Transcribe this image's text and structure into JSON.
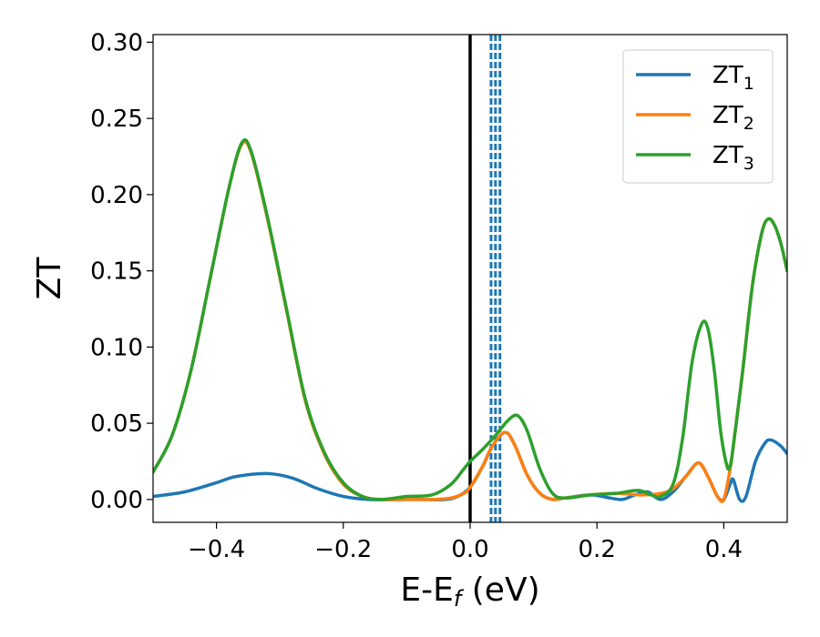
{
  "chart_data": {
    "type": "line",
    "xlabel": "E-E",
    "xlabel_sub": "f",
    "xlabel_unit": " (eV)",
    "ylabel": "ZT",
    "xlim": [
      -0.5,
      0.5
    ],
    "ylim": [
      -0.015,
      0.305
    ],
    "x_ticks": [
      -0.4,
      -0.2,
      0.0,
      0.2,
      0.4
    ],
    "x_tick_labels": [
      "−0.4",
      "−0.2",
      "0.0",
      "0.2",
      "0.4"
    ],
    "y_ticks": [
      0.0,
      0.05,
      0.1,
      0.15,
      0.2,
      0.25,
      0.3
    ],
    "y_tick_labels": [
      "0.00",
      "0.05",
      "0.10",
      "0.15",
      "0.20",
      "0.25",
      "0.30"
    ],
    "grid": false,
    "legend_position": "top-right",
    "vertical_lines": [
      {
        "x": 0.0,
        "style": "solid",
        "color": "#000000"
      },
      {
        "x": 0.033,
        "style": "dashed",
        "color": "#1f77b4"
      },
      {
        "x": 0.04,
        "style": "dashed",
        "color": "#1f77b4"
      },
      {
        "x": 0.047,
        "style": "dashed",
        "color": "#1f77b4"
      }
    ],
    "series": [
      {
        "name": "ZT",
        "sub": "1",
        "color": "#1f77b4",
        "points": [
          [
            -0.5,
            0.002
          ],
          [
            -0.45,
            0.005
          ],
          [
            -0.4,
            0.011
          ],
          [
            -0.37,
            0.015
          ],
          [
            -0.32,
            0.017
          ],
          [
            -0.28,
            0.014
          ],
          [
            -0.24,
            0.007
          ],
          [
            -0.2,
            0.002
          ],
          [
            -0.16,
            0.0
          ],
          [
            -0.12,
            0.0
          ],
          [
            -0.08,
            0.0
          ],
          [
            -0.04,
            0.0
          ],
          [
            -0.02,
            0.002
          ],
          [
            0.0,
            0.008
          ],
          [
            0.02,
            0.022
          ],
          [
            0.035,
            0.035
          ],
          [
            0.055,
            0.044
          ],
          [
            0.07,
            0.036
          ],
          [
            0.09,
            0.016
          ],
          [
            0.11,
            0.004
          ],
          [
            0.13,
            0.0
          ],
          [
            0.15,
            0.001
          ],
          [
            0.19,
            0.003
          ],
          [
            0.22,
            0.001
          ],
          [
            0.24,
            0.0
          ],
          [
            0.26,
            0.003
          ],
          [
            0.28,
            0.005
          ],
          [
            0.3,
            0.0
          ],
          [
            0.32,
            0.005
          ],
          [
            0.34,
            0.015
          ],
          [
            0.36,
            0.024
          ],
          [
            0.375,
            0.015
          ],
          [
            0.39,
            0.002
          ],
          [
            0.4,
            0.0
          ],
          [
            0.41,
            0.01
          ],
          [
            0.415,
            0.013
          ],
          [
            0.425,
            0.0
          ],
          [
            0.435,
            0.002
          ],
          [
            0.45,
            0.025
          ],
          [
            0.465,
            0.037
          ],
          [
            0.475,
            0.039
          ],
          [
            0.49,
            0.035
          ],
          [
            0.5,
            0.03
          ]
        ]
      },
      {
        "name": "ZT",
        "sub": "2",
        "color": "#ff7f0e",
        "points": [
          [
            -0.5,
            0.018
          ],
          [
            -0.47,
            0.042
          ],
          [
            -0.44,
            0.085
          ],
          [
            -0.41,
            0.145
          ],
          [
            -0.38,
            0.205
          ],
          [
            -0.36,
            0.233
          ],
          [
            -0.345,
            0.227
          ],
          [
            -0.32,
            0.185
          ],
          [
            -0.29,
            0.125
          ],
          [
            -0.26,
            0.065
          ],
          [
            -0.23,
            0.03
          ],
          [
            -0.2,
            0.01
          ],
          [
            -0.17,
            0.002
          ],
          [
            -0.14,
            0.0
          ],
          [
            -0.1,
            0.0
          ],
          [
            -0.06,
            0.0
          ],
          [
            -0.03,
            0.001
          ],
          [
            -0.01,
            0.004
          ],
          [
            0.0,
            0.008
          ],
          [
            0.02,
            0.022
          ],
          [
            0.035,
            0.035
          ],
          [
            0.055,
            0.044
          ],
          [
            0.07,
            0.036
          ],
          [
            0.09,
            0.016
          ],
          [
            0.11,
            0.004
          ],
          [
            0.13,
            0.0
          ],
          [
            0.15,
            0.001
          ],
          [
            0.19,
            0.003
          ],
          [
            0.23,
            0.004
          ],
          [
            0.27,
            0.003
          ],
          [
            0.3,
            0.004
          ],
          [
            0.32,
            0.007
          ],
          [
            0.34,
            0.015
          ],
          [
            0.36,
            0.024
          ],
          [
            0.375,
            0.015
          ],
          [
            0.39,
            0.002
          ],
          [
            0.4,
            0.0
          ],
          [
            0.41,
            0.02
          ],
          [
            0.415,
            0.035
          ],
          [
            0.43,
            0.085
          ],
          [
            0.445,
            0.14
          ],
          [
            0.46,
            0.175
          ],
          [
            0.47,
            0.184
          ],
          [
            0.48,
            0.18
          ],
          [
            0.49,
            0.168
          ],
          [
            0.5,
            0.15
          ]
        ]
      },
      {
        "name": "ZT",
        "sub": "3",
        "color": "#2ca02c",
        "points": [
          [
            -0.5,
            0.018
          ],
          [
            -0.47,
            0.042
          ],
          [
            -0.44,
            0.085
          ],
          [
            -0.41,
            0.145
          ],
          [
            -0.38,
            0.205
          ],
          [
            -0.36,
            0.234
          ],
          [
            -0.345,
            0.228
          ],
          [
            -0.32,
            0.186
          ],
          [
            -0.29,
            0.126
          ],
          [
            -0.26,
            0.066
          ],
          [
            -0.23,
            0.031
          ],
          [
            -0.2,
            0.011
          ],
          [
            -0.17,
            0.002
          ],
          [
            -0.14,
            0.0
          ],
          [
            -0.1,
            0.002
          ],
          [
            -0.06,
            0.003
          ],
          [
            -0.03,
            0.01
          ],
          [
            -0.01,
            0.02
          ],
          [
            0.0,
            0.025
          ],
          [
            0.02,
            0.033
          ],
          [
            0.04,
            0.042
          ],
          [
            0.06,
            0.052
          ],
          [
            0.075,
            0.055
          ],
          [
            0.09,
            0.045
          ],
          [
            0.11,
            0.02
          ],
          [
            0.13,
            0.004
          ],
          [
            0.15,
            0.001
          ],
          [
            0.19,
            0.003
          ],
          [
            0.23,
            0.004
          ],
          [
            0.265,
            0.006
          ],
          [
            0.285,
            0.003
          ],
          [
            0.3,
            0.002
          ],
          [
            0.32,
            0.01
          ],
          [
            0.335,
            0.04
          ],
          [
            0.35,
            0.09
          ],
          [
            0.365,
            0.115
          ],
          [
            0.375,
            0.112
          ],
          [
            0.385,
            0.085
          ],
          [
            0.395,
            0.045
          ],
          [
            0.405,
            0.022
          ],
          [
            0.41,
            0.022
          ],
          [
            0.415,
            0.035
          ],
          [
            0.43,
            0.085
          ],
          [
            0.445,
            0.14
          ],
          [
            0.46,
            0.175
          ],
          [
            0.47,
            0.184
          ],
          [
            0.48,
            0.18
          ],
          [
            0.49,
            0.168
          ],
          [
            0.5,
            0.15
          ]
        ]
      }
    ]
  }
}
